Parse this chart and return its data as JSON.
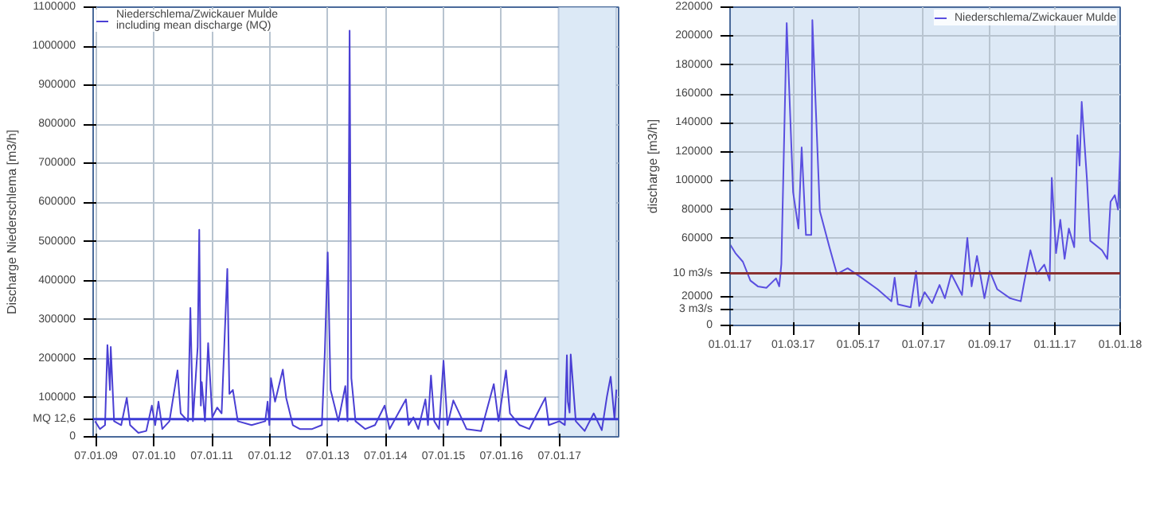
{
  "chart_data": [
    {
      "type": "line",
      "ylabel": "Discharge Niederschlema [m3/h]",
      "legend": "top",
      "grid": true,
      "xlim": [
        "2008-12-20",
        "2018-01-15"
      ],
      "xticks": [
        {
          "value": "2009-01-07",
          "label": "07.01.09"
        },
        {
          "value": "2010-01-07",
          "label": "07.01.10"
        },
        {
          "value": "2011-01-07",
          "label": "07.01.11"
        },
        {
          "value": "2012-01-07",
          "label": "07.01.12"
        },
        {
          "value": "2013-01-07",
          "label": "07.01.13"
        },
        {
          "value": "2014-01-07",
          "label": "07.01.14"
        },
        {
          "value": "2015-01-07",
          "label": "07.01.15"
        },
        {
          "value": "2016-01-07",
          "label": "07.01.16"
        },
        {
          "value": "2017-01-07",
          "label": "07.01.17"
        }
      ],
      "ylim": [
        0,
        1100000
      ],
      "yticks": [
        0,
        {
          "value": 45360,
          "label": "MQ 12,6"
        },
        100000,
        200000,
        300000,
        400000,
        500000,
        600000,
        700000,
        800000,
        900000,
        1000000,
        1100000
      ],
      "ref_lines": [
        {
          "axis": "y",
          "value": 45360,
          "label": null,
          "color": "#3b3bd6"
        }
      ],
      "bands": [
        {
          "axis": "x",
          "from": "2017-01-01",
          "to": "2018-01-01",
          "label": null,
          "color": "#dce9f6"
        }
      ],
      "series": [
        {
          "name": "Niederschlema/Zwickauer Mulde including mean discharge (MQ)",
          "color": "#4a3fd4",
          "x": [
            "2009-01-01",
            "2009-02-01",
            "2009-03-05",
            "2009-03-20",
            "2009-04-05",
            "2009-04-10",
            "2009-05-01",
            "2009-06-15",
            "2009-07-20",
            "2009-08-10",
            "2009-10-01",
            "2009-11-20",
            "2009-12-25",
            "2010-01-15",
            "2010-02-05",
            "2010-03-01",
            "2010-04-15",
            "2010-06-05",
            "2010-06-25",
            "2010-08-10",
            "2010-08-25",
            "2010-09-10",
            "2010-10-10",
            "2010-10-20",
            "2010-10-30",
            "2010-11-05",
            "2010-11-25",
            "2010-12-15",
            "2011-01-10",
            "2011-02-10",
            "2011-03-10",
            "2011-04-15",
            "2011-04-28",
            "2011-05-20",
            "2011-06-20",
            "2011-09-15",
            "2011-12-10",
            "2011-12-25",
            "2012-01-05",
            "2012-01-15",
            "2012-02-10",
            "2012-03-30",
            "2012-04-20",
            "2012-06-01",
            "2012-07-15",
            "2012-10-01",
            "2012-12-01",
            "2012-12-20",
            "2013-01-07",
            "2013-01-25",
            "2013-03-15",
            "2013-04-28",
            "2013-05-12",
            "2013-05-25",
            "2013-06-05",
            "2013-07-01",
            "2013-09-01",
            "2013-11-01",
            "2014-01-01",
            "2014-02-01",
            "2014-05-15",
            "2014-06-01",
            "2014-07-01",
            "2014-08-01",
            "2014-09-15",
            "2014-10-01",
            "2014-10-20",
            "2014-11-10",
            "2014-12-10",
            "2015-01-07",
            "2015-02-01",
            "2015-03-10",
            "2015-06-01",
            "2015-09-01",
            "2015-11-20",
            "2015-12-20",
            "2016-02-05",
            "2016-03-01",
            "2016-05-01",
            "2016-07-01",
            "2016-10-10",
            "2016-11-01",
            "2017-01-07",
            "2017-02-10",
            "2017-02-23",
            "2017-03-01",
            "2017-03-12",
            "2017-03-19",
            "2017-04-20",
            "2017-06-15",
            "2017-08-11",
            "2017-10-01",
            "2017-11-02",
            "2017-11-26",
            "2017-12-20",
            "2018-01-01"
          ],
          "values": [
            40000,
            20000,
            30000,
            235000,
            120000,
            230000,
            40000,
            30000,
            100000,
            30000,
            10000,
            15000,
            80000,
            30000,
            90000,
            20000,
            40000,
            170000,
            60000,
            40000,
            330000,
            40000,
            230000,
            530000,
            80000,
            140000,
            40000,
            240000,
            50000,
            75000,
            60000,
            430000,
            110000,
            120000,
            40000,
            30000,
            40000,
            90000,
            30000,
            150000,
            90000,
            172000,
            100000,
            30000,
            20000,
            20000,
            30000,
            220000,
            472000,
            120000,
            40000,
            130000,
            40000,
            1040000,
            150000,
            40000,
            20000,
            30000,
            80000,
            20000,
            96000,
            30000,
            50000,
            20000,
            96000,
            30000,
            157000,
            40000,
            20000,
            195000,
            30000,
            93000,
            20000,
            15000,
            135000,
            40000,
            170000,
            60000,
            30000,
            20000,
            100000,
            30000,
            40000,
            30000,
            209000,
            90000,
            62000,
            211000,
            40000,
            15000,
            60000,
            17000,
            102000,
            154000,
            46000,
            121000
          ]
        }
      ]
    },
    {
      "type": "line",
      "ylabel": "discharge [m3/h]",
      "legend": "top",
      "grid": true,
      "xlim": [
        "2017-01-01",
        "2018-01-01"
      ],
      "xticks": [
        {
          "value": "2017-01-01",
          "label": "01.01.17"
        },
        {
          "value": "2017-03-01",
          "label": "01.03.17"
        },
        {
          "value": "2017-05-01",
          "label": "01.05.17"
        },
        {
          "value": "2017-07-01",
          "label": "01.07.17"
        },
        {
          "value": "2017-09-01",
          "label": "01.09.17"
        },
        {
          "value": "2017-11-01",
          "label": "01.11.17"
        },
        {
          "value": "2018-01-01",
          "label": "01.01.18"
        }
      ],
      "ylim": [
        0,
        220000
      ],
      "yticks": [
        0,
        {
          "value": 10800,
          "label": "3 m3/s"
        },
        20000,
        {
          "value": 36000,
          "label": "10 m3/s"
        },
        60000,
        80000,
        100000,
        120000,
        140000,
        160000,
        180000,
        200000,
        220000
      ],
      "ref_lines": [
        {
          "axis": "y",
          "value": 36000,
          "label": null,
          "color": "#8b3030"
        }
      ],
      "series": [
        {
          "name": "Niederschlema/Zwickauer Mulde",
          "color": "#5a4fe0",
          "x": [
            "2017-01-01",
            "2017-01-06",
            "2017-01-13",
            "2017-01-20",
            "2017-01-27",
            "2017-02-04",
            "2017-02-13",
            "2017-02-16",
            "2017-02-18",
            "2017-02-23",
            "2017-03-01",
            "2017-03-06",
            "2017-03-09",
            "2017-03-13",
            "2017-03-18",
            "2017-03-19",
            "2017-03-26",
            "2017-04-04",
            "2017-04-11",
            "2017-04-21",
            "2017-05-02",
            "2017-05-19",
            "2017-06-01",
            "2017-06-04",
            "2017-06-07",
            "2017-06-19",
            "2017-06-24",
            "2017-06-27",
            "2017-07-02",
            "2017-07-09",
            "2017-07-16",
            "2017-07-21",
            "2017-07-27",
            "2017-08-06",
            "2017-08-11",
            "2017-08-15",
            "2017-08-20",
            "2017-08-27",
            "2017-09-01",
            "2017-09-08",
            "2017-09-20",
            "2017-09-30",
            "2017-10-03",
            "2017-10-09",
            "2017-10-15",
            "2017-10-22",
            "2017-10-27",
            "2017-10-29",
            "2017-11-02",
            "2017-11-06",
            "2017-11-10",
            "2017-11-14",
            "2017-11-19",
            "2017-11-22",
            "2017-11-24",
            "2017-11-26",
            "2017-12-01",
            "2017-12-04",
            "2017-12-15",
            "2017-12-20",
            "2017-12-23",
            "2017-12-27",
            "2017-12-30",
            "2018-01-01"
          ],
          "values": [
            56000,
            50000,
            44000,
            31000,
            27000,
            26000,
            32500,
            27000,
            42500,
            209000,
            92000,
            67000,
            123000,
            62500,
            62500,
            211000,
            79000,
            54000,
            35500,
            39500,
            34000,
            25000,
            16700,
            33000,
            14600,
            12500,
            37500,
            13400,
            23000,
            15400,
            28000,
            18800,
            35500,
            21000,
            60500,
            27000,
            48000,
            18800,
            37500,
            25000,
            18800,
            16700,
            29000,
            52000,
            35500,
            42000,
            31000,
            102000,
            50000,
            73000,
            46000,
            67000,
            54000,
            131500,
            110500,
            154500,
            100000,
            58500,
            52000,
            46000,
            85500,
            90000,
            80000,
            121000
          ]
        }
      ]
    }
  ]
}
